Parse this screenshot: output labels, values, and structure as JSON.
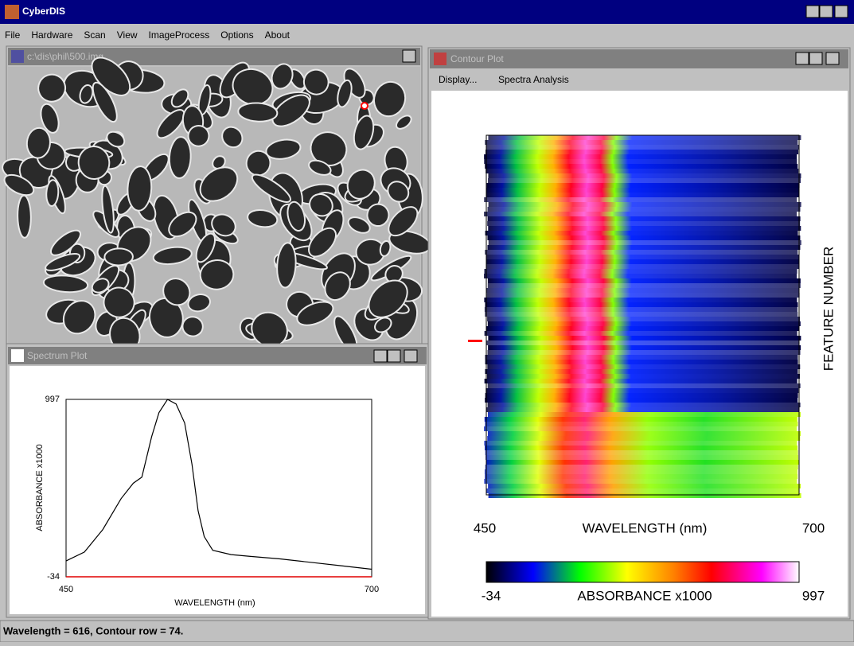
{
  "app": {
    "title": "CyberDIS",
    "menu": [
      "File",
      "Hardware",
      "Scan",
      "View",
      "ImageProcess",
      "Options",
      "About"
    ]
  },
  "image_window": {
    "title": "c:\\dis\\phil\\500.img"
  },
  "spectrum_window": {
    "title": "Spectrum Plot",
    "chart": {
      "type": "line",
      "xlabel": "WAVELENGTH (nm)",
      "ylabel": "ABSORBANCE x1000",
      "x": [
        450,
        465,
        480,
        495,
        505,
        512,
        520,
        526,
        533,
        540,
        547,
        553,
        558,
        563,
        570,
        585,
        600,
        625,
        650,
        675,
        700
      ],
      "values": [
        58,
        110,
        240,
        420,
        510,
        545,
        780,
        920,
        997,
        970,
        860,
        620,
        350,
        200,
        120,
        95,
        85,
        70,
        50,
        30,
        10
      ],
      "color": "#000000",
      "xlim": [
        450,
        700
      ],
      "ylim": [
        -34,
        997
      ],
      "xticks": [
        450,
        700
      ],
      "yticks": [
        -34,
        997
      ]
    }
  },
  "contour_window": {
    "title": "Contour Plot",
    "menu": [
      "Display...",
      "Spectra Analysis"
    ],
    "xlabel": "WAVELENGTH (nm)",
    "ylabel": "FEATURE NUMBER",
    "xticks": [
      450,
      700
    ],
    "colorbar": {
      "label": "ABSORBANCE x1000",
      "ticks": [
        -34,
        997
      ]
    }
  },
  "status": "Wavelength = 616, Contour row = 74."
}
